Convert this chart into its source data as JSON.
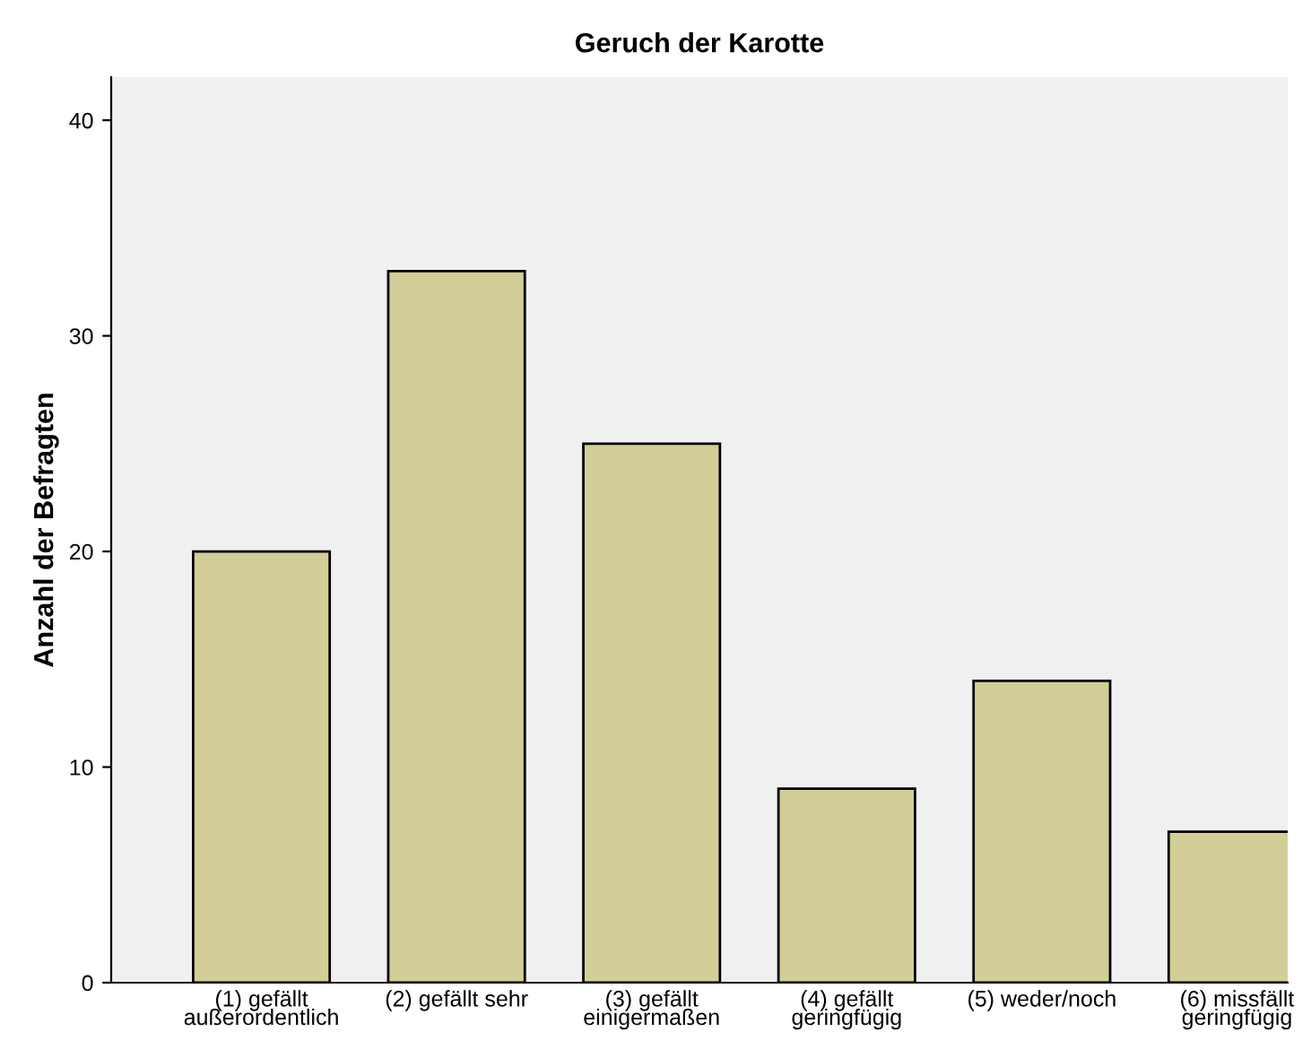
{
  "chart_data": {
    "type": "bar",
    "title": "Geruch der Karotte",
    "ylabel": "Anzahl der Befragten",
    "categories": [
      "(1) gefällt\naußerordentlich",
      "(2) gefällt sehr",
      "(3) gefällt\neinigermaßen",
      "(4) gefällt\ngeringfügig",
      "(5) weder/noch",
      "(6) missfällt\ngeringfügig"
    ],
    "values": [
      20,
      33,
      25,
      9,
      14,
      7
    ],
    "color": "#d3ce97",
    "ylim": [
      0,
      42
    ],
    "yticks": [
      0,
      10,
      20,
      30,
      40
    ],
    "grid": false,
    "legend": false
  }
}
